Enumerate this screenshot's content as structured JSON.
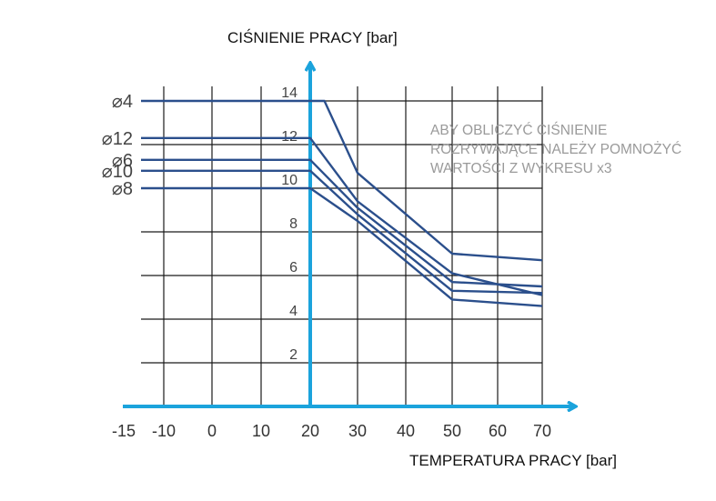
{
  "chart_data": {
    "type": "line",
    "ylabel": "CIŚNIENIE PRACY [bar]",
    "xlabel": "TEMPERATURA PRACY [bar]",
    "note": [
      "ABY OBLICZYĆ CIŚNIENIE",
      "ROZRYWAJĄCE NALEŻY POMNOŻYĆ",
      "WARTOŚCI Z WYKRESU x3"
    ],
    "x_ticks": [
      -15,
      -10,
      0,
      10,
      20,
      30,
      40,
      50,
      60,
      70
    ],
    "y_ticks": [
      2,
      4,
      6,
      8,
      10,
      12,
      14
    ],
    "ylim": [
      0,
      14.8
    ],
    "grid": true,
    "line_color": "#2b4f8c",
    "axis_color": "#1ba3dc",
    "series": [
      {
        "name": "⌀4",
        "x": [
          -15,
          23,
          30,
          50,
          70
        ],
        "y": [
          14,
          14,
          10.7,
          7,
          6.7
        ]
      },
      {
        "name": "⌀12",
        "x": [
          -15,
          20,
          30,
          50,
          70
        ],
        "y": [
          12.3,
          12.3,
          9.4,
          6.1,
          5.1
        ]
      },
      {
        "name": "⌀6",
        "x": [
          -15,
          20,
          30,
          50,
          70
        ],
        "y": [
          11.3,
          11.3,
          9.1,
          5.7,
          5.5
        ]
      },
      {
        "name": "⌀10",
        "x": [
          -15,
          20,
          30,
          50,
          70
        ],
        "y": [
          10.8,
          10.8,
          8.8,
          5.3,
          5.2
        ]
      },
      {
        "name": "⌀8",
        "x": [
          -15,
          20,
          30,
          50,
          70
        ],
        "y": [
          10,
          10,
          8.5,
          4.9,
          4.6
        ]
      }
    ]
  }
}
